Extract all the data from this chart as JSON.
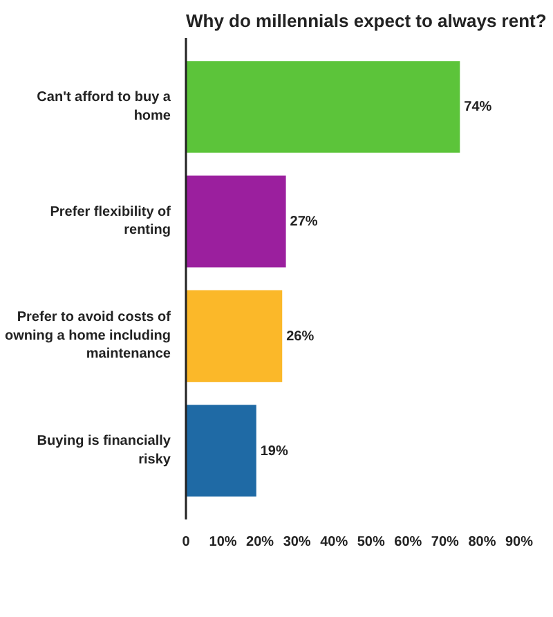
{
  "chart_data": {
    "type": "bar",
    "orientation": "horizontal",
    "title": "Why do millennials expect to always rent?",
    "categories": [
      "Can't afford to buy a home",
      "Prefer flexibility of renting",
      "Prefer to avoid costs of owning a home including maintenance",
      "Buying is financially risky"
    ],
    "values": [
      74,
      27,
      26,
      19
    ],
    "colors": [
      "#5cc43a",
      "#9b1f9e",
      "#fbb829",
      "#1f6aa5"
    ],
    "value_labels": [
      "74%",
      "27%",
      "26%",
      "19%"
    ],
    "xlim": [
      0,
      90
    ],
    "xticks": [
      0,
      {
        "value": 10,
        "label": "10%"
      },
      {
        "value": 20,
        "label": "20%"
      },
      {
        "value": 30,
        "label": "30%"
      },
      {
        "value": 40,
        "label": "40%"
      },
      {
        "value": 50,
        "label": "50%"
      },
      {
        "value": 60,
        "label": "60%"
      },
      {
        "value": 70,
        "label": "70%"
      },
      {
        "value": 80,
        "label": "80%"
      },
      {
        "value": 90,
        "label": "90%"
      }
    ],
    "grid": false
  }
}
